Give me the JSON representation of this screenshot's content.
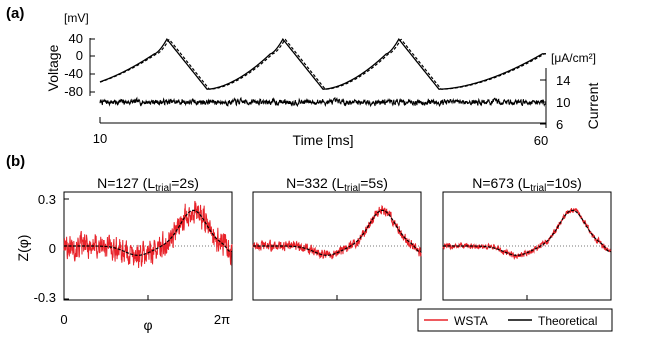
{
  "chart_data": [
    {
      "type": "line",
      "panel_label": "(a)",
      "xlabel": "Time [ms]",
      "x_ticks": [
        "10",
        "60"
      ],
      "xlim": [
        10,
        60
      ],
      "left_axis": {
        "label": "Voltage",
        "unit": "[mV]",
        "ticks": [
          "40",
          "0",
          "-40",
          "-80"
        ],
        "ylim": [
          -100,
          40
        ]
      },
      "right_axis": {
        "label": "Current",
        "unit": "[μA/cm²]",
        "ticks": [
          "14",
          "10",
          "6"
        ],
        "ylim": [
          6,
          14
        ]
      },
      "spike_times_ms": [
        17.5,
        30.5,
        43.5
      ],
      "voltage_reset_mV": -75,
      "voltage_peak_mV": 38,
      "current_mean": 10,
      "current_noise_amplitude": 0.9,
      "series": [
        {
          "kind": "voltage-solid",
          "color": "#000000"
        },
        {
          "kind": "voltage-dashed",
          "color": "#000000"
        },
        {
          "kind": "current",
          "color": "#000000"
        }
      ]
    },
    {
      "type": "line",
      "panel_label": "(b)",
      "ylabel": "Z(φ)",
      "y_ticks": [
        "0.3",
        "0",
        "-0.3"
      ],
      "ylim": [
        -0.3,
        0.3
      ],
      "x_ticks": [
        "0",
        "φ",
        "2π"
      ],
      "xlim": [
        0,
        6.283
      ],
      "legend": {
        "placement": "bottom-right",
        "entries": [
          {
            "name": "WSTA",
            "color": "#e8232a"
          },
          {
            "name": "Theoretical",
            "color": "#000000"
          }
        ]
      },
      "panels": [
        {
          "title_prefix": "N=127 (L",
          "title_sub": "trial",
          "title_suffix": "=2s)",
          "noise": 0.09
        },
        {
          "title_prefix": "N=332 (L",
          "title_sub": "trial",
          "title_suffix": "=5s)",
          "noise": 0.035
        },
        {
          "title_prefix": "N=673 (L",
          "title_sub": "trial",
          "title_suffix": "=10s)",
          "noise": 0.022
        }
      ]
    }
  ]
}
